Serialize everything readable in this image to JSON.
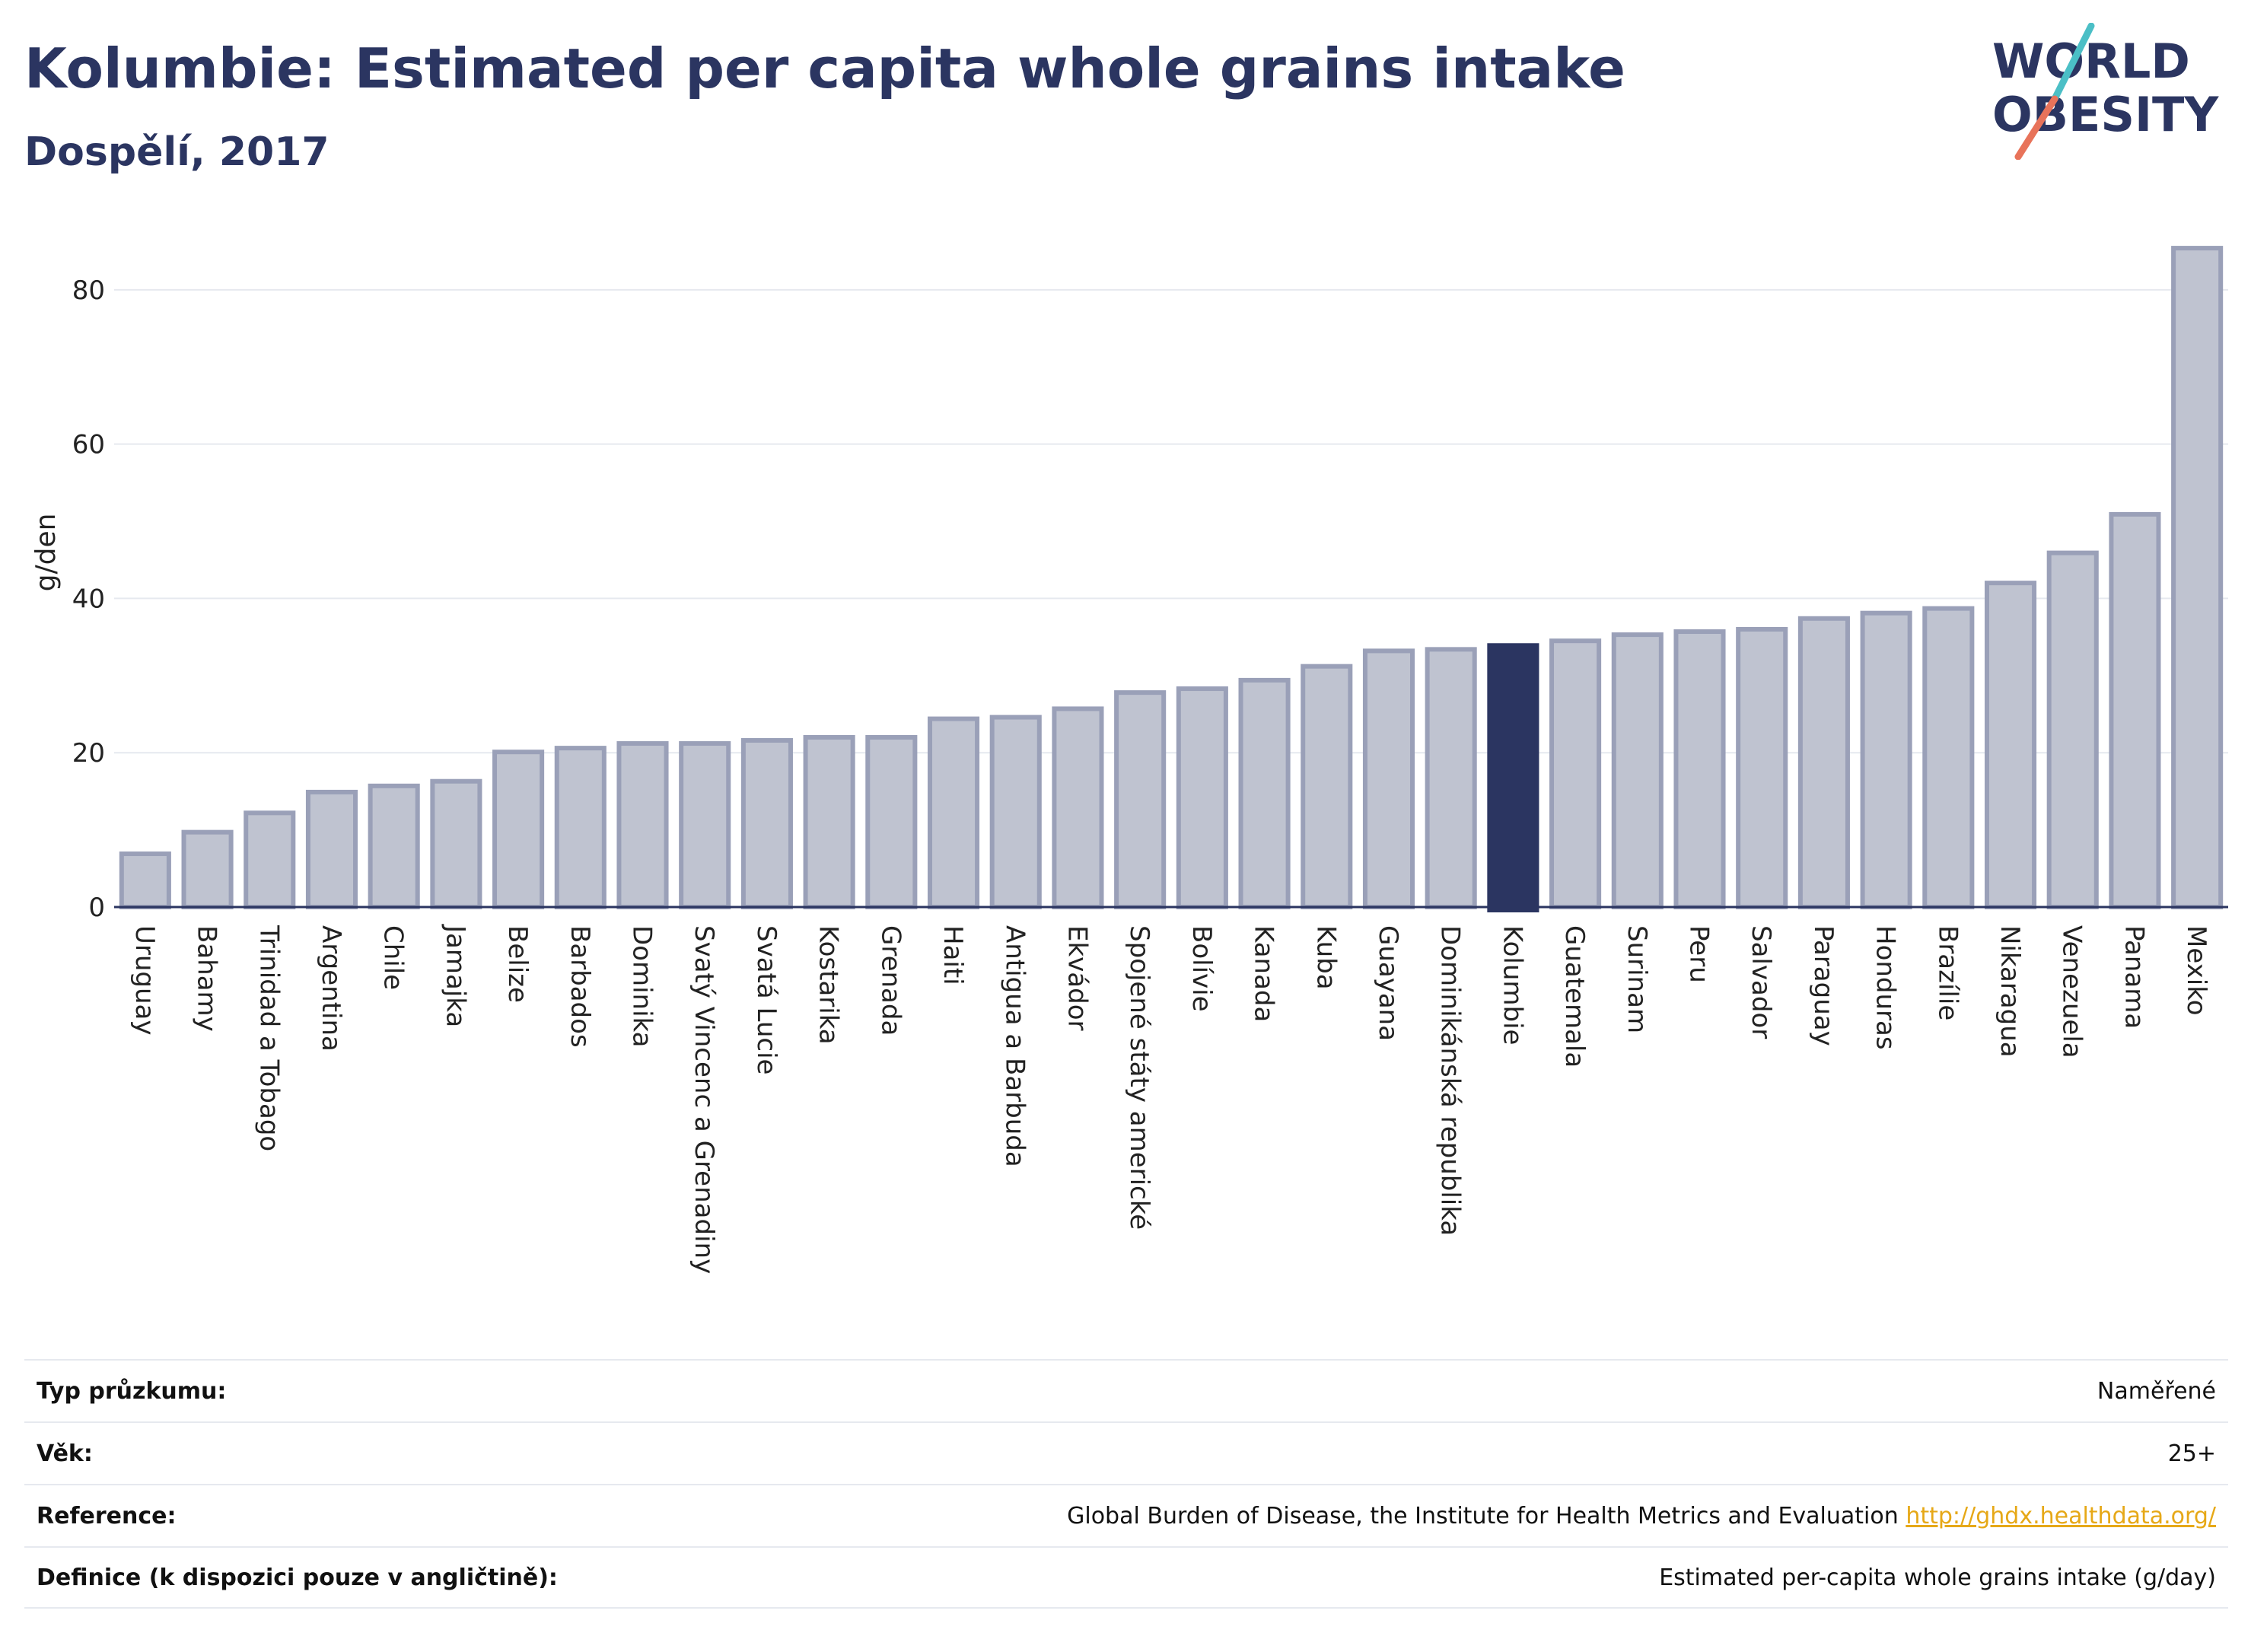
{
  "header": {
    "title": "Kolumbie: Estimated per capita whole grains intake",
    "subtitle": "Dospělí, 2017"
  },
  "logo": {
    "line1": "WORLD",
    "line2": "OBESITY",
    "accent_colors": [
      "#4bbfc6",
      "#e8735a"
    ]
  },
  "colors": {
    "bar": "#bfc3d0",
    "bar_border": "#9aa0b8",
    "highlight": "#2b3561",
    "grid": "#e6e9ef",
    "axis": "#2b3561"
  },
  "chart_data": {
    "type": "bar",
    "title": "Kolumbie: Estimated per capita whole grains intake",
    "subtitle": "Dospělí, 2017",
    "ylabel": "g/den",
    "ylim": [
      0,
      86
    ],
    "yticks": [
      0,
      20,
      40,
      60,
      80
    ],
    "grid": true,
    "highlight": "Kolumbie",
    "categories": [
      "Uruguay",
      "Bahamy",
      "Trinidad a Tobago",
      "Argentina",
      "Chile",
      "Jamajka",
      "Belize",
      "Barbados",
      "Dominika",
      "Svatý Vincenc a Grenadiny",
      "Svatá Lucie",
      "Kostarika",
      "Grenada",
      "Haiti",
      "Antigua a Barbuda",
      "Ekvádor",
      "Spojené státy americké",
      "Bolívie",
      "Kanada",
      "Kuba",
      "Guayana",
      "Dominikánská republika",
      "Kolumbie",
      "Guatemala",
      "Surinam",
      "Peru",
      "Salvador",
      "Paraguay",
      "Honduras",
      "Brazílie",
      "Nikaragua",
      "Venezuela",
      "Panama",
      "Mexiko"
    ],
    "values": [
      6.9,
      9.7,
      12.2,
      14.9,
      15.7,
      16.3,
      20.1,
      20.6,
      21.2,
      21.2,
      21.6,
      22.0,
      22.0,
      24.4,
      24.6,
      25.7,
      27.8,
      28.3,
      29.4,
      31.2,
      33.2,
      33.4,
      33.9,
      34.5,
      35.3,
      35.7,
      36.0,
      37.4,
      38.1,
      38.7,
      42.0,
      45.9,
      50.9,
      85.4
    ]
  },
  "info": {
    "rows": [
      {
        "label": "Typ průzkumu:",
        "value": "Naměřené"
      },
      {
        "label": "Věk:",
        "value": "25+"
      },
      {
        "label": "Reference:",
        "value": "Global Burden of Disease, the Institute for Health Metrics and Evaluation",
        "link": "http://ghdx.healthdata.org/"
      },
      {
        "label": "Definice (k dispozici pouze v angličtině):",
        "value": "Estimated per-capita whole grains intake (g/day)"
      }
    ]
  }
}
